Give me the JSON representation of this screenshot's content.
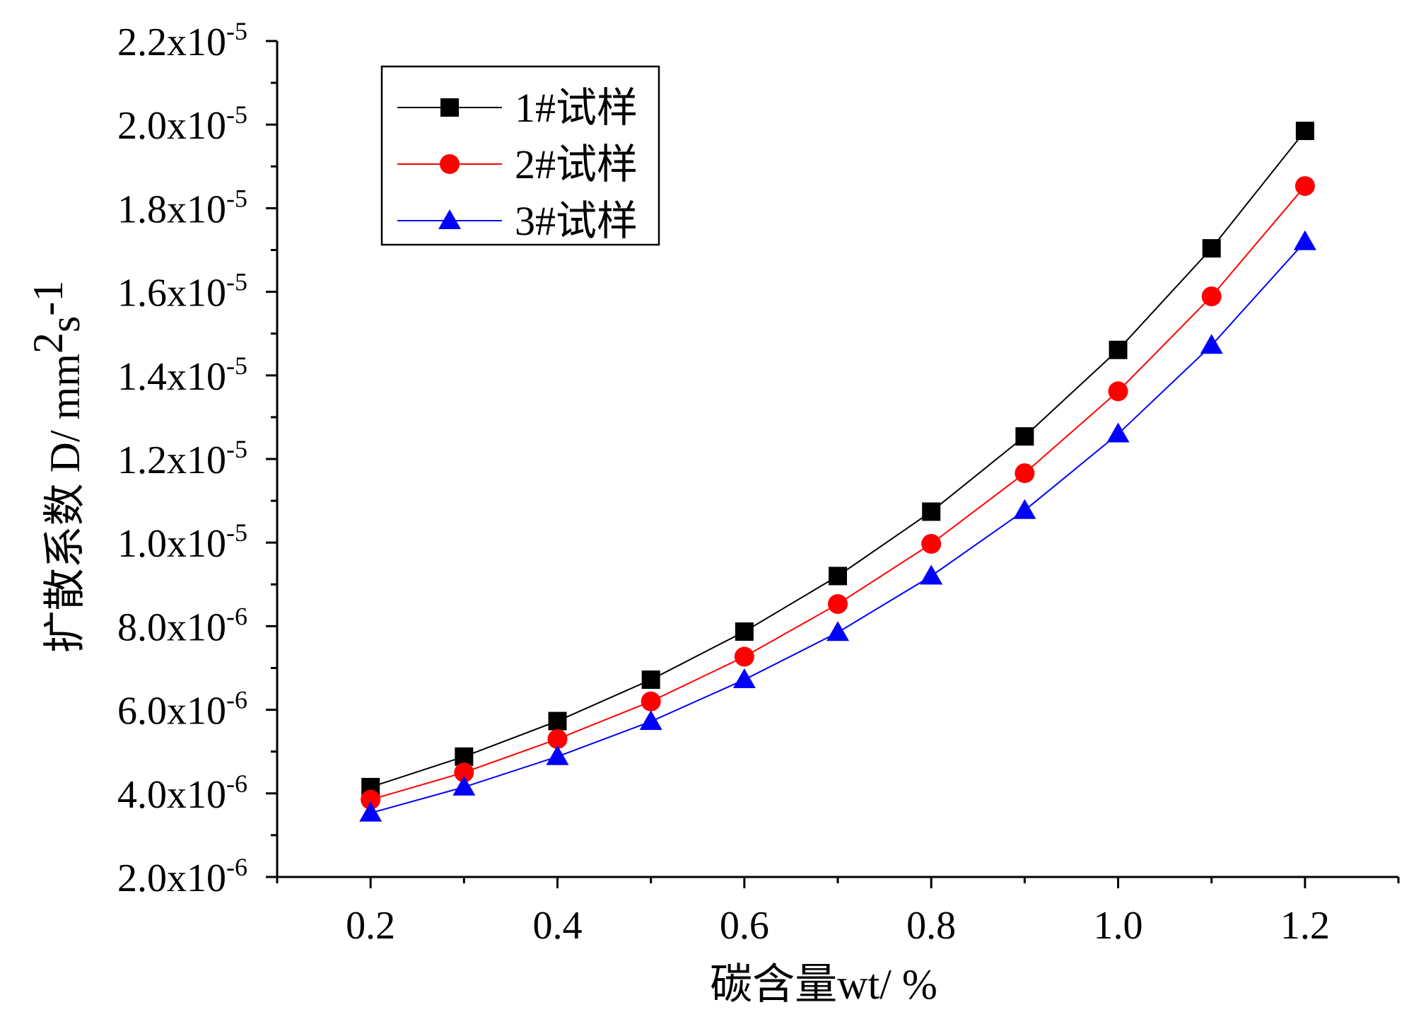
{
  "chart_data": {
    "type": "line",
    "title": "",
    "xlabel": "碳含量wt/ %",
    "ylabel": {
      "prefix": "扩散系数 D/ mm",
      "sup": "2",
      "middle": "s",
      "sup2": "-1"
    },
    "xlim": [
      0.1,
      1.3
    ],
    "ylim": [
      2e-06,
      2.2e-05
    ],
    "x_ticks": [
      {
        "value": 0.2,
        "label": "0.2"
      },
      {
        "value": 0.4,
        "label": "0.4"
      },
      {
        "value": 0.6,
        "label": "0.6"
      },
      {
        "value": 0.8,
        "label": "0.8"
      },
      {
        "value": 1.0,
        "label": "1.0"
      },
      {
        "value": 1.2,
        "label": "1.2"
      }
    ],
    "y_ticks": [
      {
        "value": 2e-06,
        "mantissa": "2.0x10",
        "exp": "-6"
      },
      {
        "value": 4e-06,
        "mantissa": "4.0x10",
        "exp": "-6"
      },
      {
        "value": 6e-06,
        "mantissa": "6.0x10",
        "exp": "-6"
      },
      {
        "value": 8e-06,
        "mantissa": "8.0x10",
        "exp": "-6"
      },
      {
        "value": 1e-05,
        "mantissa": "1.0x10",
        "exp": "-5"
      },
      {
        "value": 1.2e-05,
        "mantissa": "1.2x10",
        "exp": "-5"
      },
      {
        "value": 1.4e-05,
        "mantissa": "1.4x10",
        "exp": "-5"
      },
      {
        "value": 1.6e-05,
        "mantissa": "1.6x10",
        "exp": "-5"
      },
      {
        "value": 1.8e-05,
        "mantissa": "1.8x10",
        "exp": "-5"
      },
      {
        "value": 2e-05,
        "mantissa": "2.0x10",
        "exp": "-5"
      },
      {
        "value": 2.2e-05,
        "mantissa": "2.2x10",
        "exp": "-5"
      }
    ],
    "x": [
      0.2,
      0.3,
      0.4,
      0.5,
      0.6,
      0.7,
      0.8,
      0.9,
      1.0,
      1.1,
      1.2
    ],
    "series": [
      {
        "name": "1#试样",
        "color": "#000000",
        "marker": "square",
        "values": [
          4.15e-06,
          4.88e-06,
          5.73e-06,
          6.72e-06,
          7.87e-06,
          9.2e-06,
          1.074e-05,
          1.254e-05,
          1.461e-05,
          1.704e-05,
          1.985e-05
        ]
      },
      {
        "name": "2#试样",
        "color": "#ff0000",
        "marker": "circle",
        "values": [
          3.85e-06,
          4.5e-06,
          5.3e-06,
          6.2e-06,
          7.27e-06,
          8.53e-06,
          9.97e-06,
          1.166e-05,
          1.362e-05,
          1.589e-05,
          1.853e-05
        ]
      },
      {
        "name": "3#试样",
        "color": "#0000ff",
        "marker": "triangle",
        "values": [
          3.53e-06,
          4.15e-06,
          4.88e-06,
          5.72e-06,
          6.72e-06,
          7.85e-06,
          9.2e-06,
          1.077e-05,
          1.26e-05,
          1.472e-05,
          1.72e-05
        ]
      }
    ],
    "legend_position": "top-left",
    "grid": false
  }
}
